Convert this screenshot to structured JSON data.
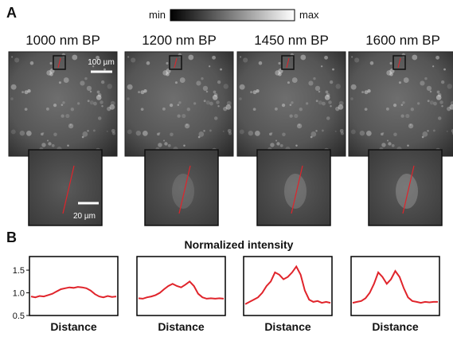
{
  "panel_a": {
    "label": "A",
    "colorbar": {
      "min_label": "min",
      "max_label": "max"
    },
    "images": [
      {
        "title": "1000 nm BP"
      },
      {
        "title": "1200 nm BP"
      },
      {
        "title": "1450 nm BP"
      },
      {
        "title": "1600 nm BP"
      }
    ],
    "scale_bars": {
      "overview": "100 µm",
      "inset": "20 µm"
    }
  },
  "panel_b": {
    "label": "B",
    "title": "Normalized intensity"
  },
  "chart_data": [
    {
      "type": "line",
      "xlabel": "Distance",
      "color": "#e0242b",
      "ylim": [
        0.5,
        1.8
      ],
      "yticks": [
        0.5,
        {
          "value": 1,
          "label": "1.0"
        },
        1.5
      ],
      "values": [
        0.92,
        0.9,
        0.93,
        0.92,
        0.95,
        0.98,
        1.03,
        1.08,
        1.1,
        1.12,
        1.11,
        1.13,
        1.12,
        1.1,
        1.05,
        0.97,
        0.92,
        0.9,
        0.93,
        0.91,
        0.92
      ]
    },
    {
      "type": "line",
      "xlabel": "Distance",
      "color": "#e0242b",
      "ylim": [
        0.5,
        1.8
      ],
      "values": [
        0.88,
        0.87,
        0.9,
        0.92,
        0.95,
        1.0,
        1.08,
        1.15,
        1.2,
        1.15,
        1.12,
        1.18,
        1.25,
        1.15,
        0.98,
        0.9,
        0.87,
        0.88,
        0.87,
        0.88,
        0.87
      ]
    },
    {
      "type": "line",
      "xlabel": "Distance",
      "color": "#e0242b",
      "ylim": [
        0.5,
        1.8
      ],
      "values": [
        0.75,
        0.8,
        0.85,
        0.9,
        1.0,
        1.15,
        1.25,
        1.45,
        1.4,
        1.3,
        1.35,
        1.45,
        1.58,
        1.4,
        1.05,
        0.85,
        0.8,
        0.82,
        0.78,
        0.8,
        0.78
      ]
    },
    {
      "type": "line",
      "xlabel": "Distance",
      "color": "#e0242b",
      "ylim": [
        0.5,
        1.8
      ],
      "values": [
        0.78,
        0.8,
        0.82,
        0.88,
        1.0,
        1.2,
        1.45,
        1.35,
        1.2,
        1.3,
        1.48,
        1.35,
        1.1,
        0.9,
        0.82,
        0.8,
        0.78,
        0.8,
        0.79,
        0.8,
        0.8
      ]
    }
  ]
}
